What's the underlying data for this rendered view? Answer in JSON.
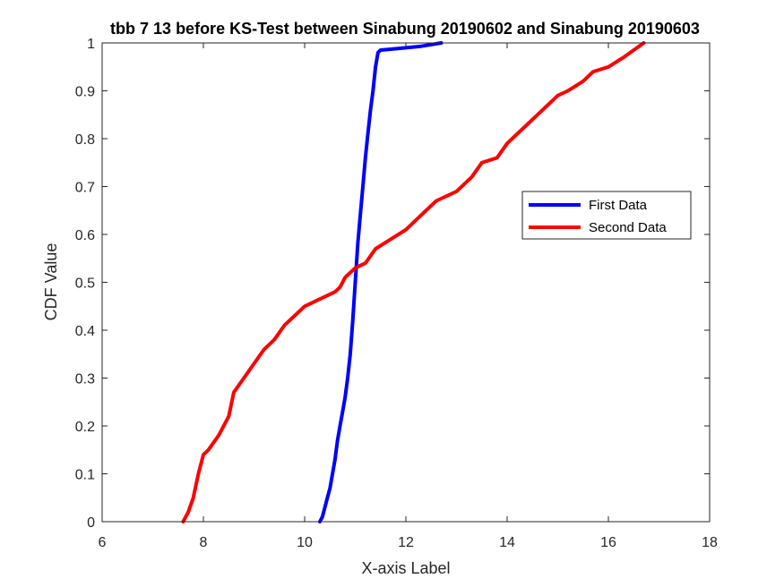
{
  "chart_data": {
    "type": "line",
    "title": "tbb 7 13 before KS-Test between Sinabung 20190602 and Sinabung 20190603",
    "xlabel": "X-axis Label",
    "ylabel": "CDF Value",
    "xlim": [
      6,
      18
    ],
    "ylim": [
      0,
      1
    ],
    "xticks": [
      6,
      8,
      10,
      12,
      14,
      16,
      18
    ],
    "yticks": [
      0,
      0.1,
      0.2,
      0.3,
      0.4,
      0.5,
      0.6,
      0.7,
      0.8,
      0.9,
      1
    ],
    "xtick_labels": [
      "6",
      "8",
      "10",
      "12",
      "14",
      "16",
      "18"
    ],
    "ytick_labels": [
      "0",
      "0.1",
      "0.2",
      "0.3",
      "0.4",
      "0.5",
      "0.6",
      "0.7",
      "0.8",
      "0.9",
      "1"
    ],
    "grid": false,
    "legend_position": "right",
    "series": [
      {
        "name": "First Data",
        "color": "#0000ff",
        "x": [
          10.3,
          10.35,
          10.4,
          10.45,
          10.5,
          10.55,
          10.6,
          10.65,
          10.7,
          10.75,
          10.8,
          10.85,
          10.9,
          10.95,
          11.0,
          11.05,
          11.1,
          11.15,
          11.2,
          11.25,
          11.3,
          11.35,
          11.4,
          11.45,
          11.5,
          11.7,
          12.0,
          12.3,
          12.7
        ],
        "y": [
          0.0,
          0.01,
          0.03,
          0.05,
          0.07,
          0.1,
          0.13,
          0.17,
          0.2,
          0.23,
          0.26,
          0.3,
          0.35,
          0.42,
          0.5,
          0.58,
          0.64,
          0.7,
          0.76,
          0.81,
          0.86,
          0.9,
          0.95,
          0.98,
          0.985,
          0.987,
          0.99,
          0.993,
          1.0
        ]
      },
      {
        "name": "Second Data",
        "color": "#ff0000",
        "x": [
          7.6,
          7.7,
          7.8,
          7.9,
          8.0,
          8.1,
          8.3,
          8.5,
          8.6,
          8.8,
          9.0,
          9.2,
          9.4,
          9.6,
          9.8,
          10.0,
          10.2,
          10.4,
          10.6,
          10.7,
          10.8,
          11.0,
          11.2,
          11.4,
          11.7,
          12.0,
          12.3,
          12.6,
          13.0,
          13.3,
          13.5,
          13.8,
          14.0,
          14.2,
          14.4,
          14.7,
          15.0,
          15.2,
          15.5,
          15.7,
          16.0,
          16.3,
          16.5,
          16.7
        ],
        "y": [
          0.0,
          0.02,
          0.05,
          0.1,
          0.14,
          0.15,
          0.18,
          0.22,
          0.27,
          0.3,
          0.33,
          0.36,
          0.38,
          0.41,
          0.43,
          0.45,
          0.46,
          0.47,
          0.48,
          0.49,
          0.51,
          0.53,
          0.54,
          0.57,
          0.59,
          0.61,
          0.64,
          0.67,
          0.69,
          0.72,
          0.75,
          0.76,
          0.79,
          0.81,
          0.83,
          0.86,
          0.89,
          0.9,
          0.92,
          0.94,
          0.95,
          0.97,
          0.985,
          1.0
        ]
      }
    ]
  }
}
